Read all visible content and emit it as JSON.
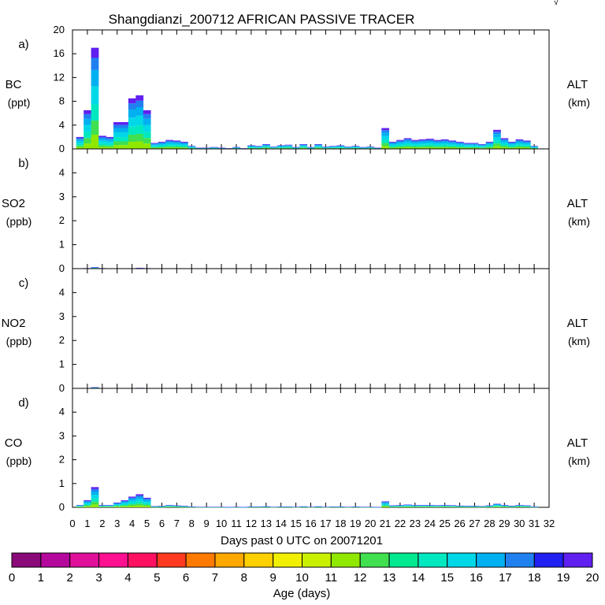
{
  "chart_data": {
    "type": "area",
    "title": "Shangdianzi_200712 AFRICAN PASSIVE TRACER",
    "xlabel": "Days past 0 UTC on 20071201",
    "xlim": [
      0,
      32
    ],
    "x_ticks": [
      "0",
      "1",
      "2",
      "3",
      "4",
      "5",
      "6",
      "7",
      "8",
      "9",
      "10",
      "11",
      "12",
      "13",
      "14",
      "15",
      "16",
      "17",
      "18",
      "19",
      "20",
      "21",
      "22",
      "23",
      "24",
      "25",
      "26",
      "27",
      "28",
      "29",
      "30",
      "31",
      "32"
    ],
    "stacking": "stacked by age bin (0-20 days)",
    "x": [
      0.5,
      1.0,
      1.5,
      2.0,
      2.5,
      3.0,
      3.5,
      4.0,
      4.5,
      5.0,
      5.5,
      6.0,
      6.5,
      7.0,
      7.5,
      8.0,
      8.5,
      9.0,
      9.5,
      10.0,
      10.5,
      11.0,
      11.5,
      12.0,
      12.5,
      13.0,
      13.5,
      14.0,
      14.5,
      15.0,
      15.5,
      16.0,
      16.5,
      17.0,
      17.5,
      18.0,
      18.5,
      19.0,
      19.5,
      20.0,
      20.5,
      21.0,
      21.5,
      22.0,
      22.5,
      23.0,
      23.5,
      24.0,
      24.5,
      25.0,
      25.5,
      26.0,
      26.5,
      27.0,
      27.5,
      28.0,
      28.5,
      29.0,
      29.5,
      30.0,
      30.5,
      31.0
    ],
    "panels": [
      {
        "label": "a)",
        "variable": "BC",
        "unit": "(ppt)",
        "right_label": "ALT",
        "right_unit": "(km)",
        "ylim": [
          0,
          20
        ],
        "y_ticks": [
          "0",
          "4",
          "8",
          "12",
          "16",
          "20"
        ],
        "totals": [
          2.0,
          6.5,
          17.0,
          2.2,
          2.0,
          4.5,
          4.5,
          8.5,
          9.0,
          6.5,
          1.0,
          1.2,
          1.5,
          1.4,
          1.2,
          0.5,
          0.2,
          0.2,
          0.3,
          0.2,
          0.1,
          0.3,
          0.1,
          0.6,
          0.5,
          0.8,
          0.4,
          0.6,
          0.7,
          0.3,
          0.8,
          0.3,
          0.8,
          0.4,
          0.5,
          0.6,
          0.4,
          0.5,
          0.3,
          0.4,
          0.2,
          3.5,
          1.2,
          1.5,
          1.8,
          1.5,
          1.6,
          1.7,
          1.5,
          1.6,
          1.4,
          1.2,
          1.0,
          1.0,
          0.8,
          1.2,
          3.2,
          1.8,
          1.2,
          1.6,
          1.4,
          0.5
        ]
      },
      {
        "label": "b)",
        "variable": "SO2",
        "unit": "(ppb)",
        "right_label": "ALT",
        "right_unit": "(km)",
        "ylim": [
          0,
          5
        ],
        "y_ticks": [
          "0",
          "1",
          "2",
          "3",
          "4"
        ],
        "totals": [
          0,
          0.02,
          0.06,
          0.02,
          0,
          0,
          0,
          0.01,
          0.03,
          0.02,
          0,
          0,
          0,
          0,
          0,
          0,
          0,
          0,
          0,
          0,
          0,
          0,
          0,
          0,
          0,
          0,
          0,
          0,
          0,
          0,
          0,
          0,
          0,
          0,
          0,
          0,
          0,
          0,
          0,
          0,
          0,
          0,
          0,
          0,
          0,
          0,
          0,
          0,
          0,
          0,
          0,
          0,
          0,
          0,
          0,
          0,
          0,
          0,
          0,
          0,
          0,
          0
        ]
      },
      {
        "label": "c)",
        "variable": "NO2",
        "unit": "(ppb)",
        "right_label": "ALT",
        "right_unit": "(km)",
        "ylim": [
          0,
          5
        ],
        "y_ticks": [
          "0",
          "1",
          "2",
          "3",
          "4"
        ],
        "totals": [
          0,
          0,
          0.05,
          0,
          0,
          0,
          0,
          0,
          0.02,
          0,
          0,
          0,
          0,
          0,
          0,
          0,
          0,
          0,
          0,
          0,
          0,
          0,
          0,
          0,
          0,
          0,
          0,
          0,
          0,
          0,
          0,
          0,
          0,
          0,
          0,
          0,
          0,
          0,
          0,
          0,
          0,
          0,
          0,
          0,
          0,
          0,
          0,
          0,
          0,
          0,
          0,
          0,
          0,
          0,
          0,
          0,
          0,
          0,
          0,
          0,
          0,
          0
        ]
      },
      {
        "label": "d)",
        "variable": "CO",
        "unit": "(ppb)",
        "right_label": "ALT",
        "right_unit": "(km)",
        "ylim": [
          0,
          5
        ],
        "y_ticks": [
          "0",
          "1",
          "2",
          "3",
          "4"
        ],
        "totals": [
          0.1,
          0.3,
          0.85,
          0.1,
          0.1,
          0.2,
          0.3,
          0.45,
          0.55,
          0.4,
          0.05,
          0.06,
          0.1,
          0.08,
          0.06,
          0.03,
          0.02,
          0.02,
          0.02,
          0.02,
          0.01,
          0.02,
          0.01,
          0.03,
          0.03,
          0.04,
          0.02,
          0.03,
          0.03,
          0.02,
          0.04,
          0.02,
          0.04,
          0.02,
          0.03,
          0.03,
          0.02,
          0.03,
          0.02,
          0.02,
          0.01,
          0.25,
          0.08,
          0.1,
          0.12,
          0.1,
          0.1,
          0.1,
          0.09,
          0.1,
          0.09,
          0.07,
          0.06,
          0.06,
          0.05,
          0.08,
          0.15,
          0.1,
          0.07,
          0.1,
          0.08,
          0.03
        ]
      }
    ],
    "colorbar": {
      "label": "Age (days)",
      "ticks": [
        "0",
        "1",
        "2",
        "3",
        "4",
        "5",
        "6",
        "7",
        "8",
        "9",
        "10",
        "11",
        "12",
        "13",
        "14",
        "15",
        "16",
        "17",
        "18",
        "19",
        "20"
      ],
      "colors": [
        "#8b0a7a",
        "#b4089c",
        "#e0109a",
        "#ff1090",
        "#ff1060",
        "#ff3a20",
        "#ff7a00",
        "#ffa800",
        "#ffd000",
        "#f0f000",
        "#c8f000",
        "#90e800",
        "#40e050",
        "#00e890",
        "#00e8c0",
        "#00d8e8",
        "#00b0f0",
        "#2080f0",
        "#2020f0",
        "#6020f0"
      ]
    },
    "top_right_mark": "√"
  }
}
